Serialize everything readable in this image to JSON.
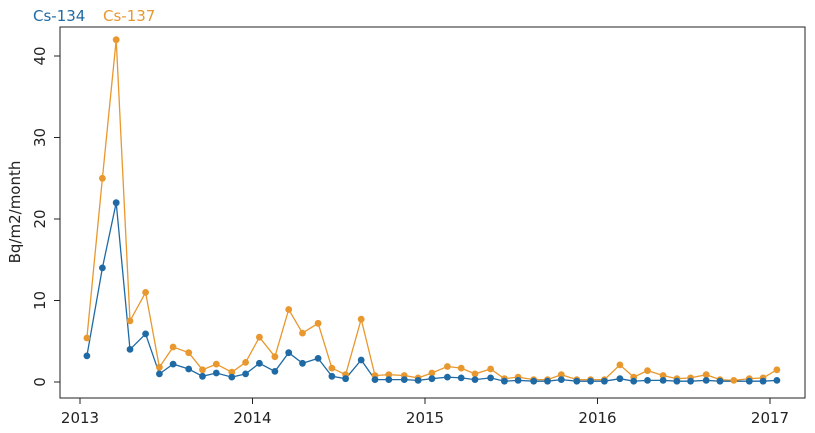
{
  "chart_data": {
    "type": "line",
    "title": "",
    "xlabel": "",
    "ylabel": "Bq/m2/month",
    "xlim": [
      2013,
      2017.05
    ],
    "ylim": [
      -1,
      43
    ],
    "x_ticks": [
      "2013",
      "2014",
      "2015",
      "2016",
      "2017"
    ],
    "y_ticks": [
      "0",
      "10",
      "20",
      "30",
      "40"
    ],
    "grid": false,
    "legend_position": "top-left",
    "series": [
      {
        "name": "Cs-134",
        "color": "#1f6aa5",
        "points": [
          [
            2013.04,
            3.2
          ],
          [
            2013.13,
            14.0
          ],
          [
            2013.21,
            22.0
          ],
          [
            2013.29,
            4.0
          ],
          [
            2013.38,
            5.9
          ],
          [
            2013.46,
            1.0
          ],
          [
            2013.54,
            2.2
          ],
          [
            2013.63,
            1.6
          ],
          [
            2013.71,
            0.7
          ],
          [
            2013.79,
            1.1
          ],
          [
            2013.88,
            0.6
          ],
          [
            2013.96,
            1.0
          ],
          [
            2014.04,
            2.3
          ],
          [
            2014.13,
            1.3
          ],
          [
            2014.21,
            3.6
          ],
          [
            2014.29,
            2.3
          ],
          [
            2014.38,
            2.9
          ],
          [
            2014.46,
            0.7
          ],
          [
            2014.54,
            0.4
          ],
          [
            2014.63,
            2.7
          ],
          [
            2014.71,
            0.3
          ],
          [
            2014.79,
            0.3
          ],
          [
            2014.88,
            0.3
          ],
          [
            2014.96,
            0.2
          ],
          [
            2015.04,
            0.4
          ],
          [
            2015.13,
            0.6
          ],
          [
            2015.21,
            0.5
          ],
          [
            2015.29,
            0.3
          ],
          [
            2015.38,
            0.5
          ],
          [
            2015.46,
            0.1
          ],
          [
            2015.54,
            0.2
          ],
          [
            2015.63,
            0.1
          ],
          [
            2015.71,
            0.1
          ],
          [
            2015.79,
            0.3
          ],
          [
            2015.88,
            0.1
          ],
          [
            2015.96,
            0.1
          ],
          [
            2016.04,
            0.1
          ],
          [
            2016.13,
            0.4
          ],
          [
            2016.21,
            0.1
          ],
          [
            2016.29,
            0.2
          ],
          [
            2016.38,
            0.2
          ],
          [
            2016.46,
            0.1
          ],
          [
            2016.54,
            0.1
          ],
          [
            2016.63,
            0.2
          ],
          [
            2016.71,
            0.1
          ],
          [
            2016.88,
            0.1
          ],
          [
            2016.96,
            0.1
          ],
          [
            2017.04,
            0.2
          ]
        ]
      },
      {
        "name": "Cs-137",
        "color": "#e8982e",
        "points": [
          [
            2013.04,
            5.4
          ],
          [
            2013.13,
            25.0
          ],
          [
            2013.21,
            42.0
          ],
          [
            2013.29,
            7.5
          ],
          [
            2013.38,
            11.0
          ],
          [
            2013.46,
            1.8
          ],
          [
            2013.54,
            4.3
          ],
          [
            2013.63,
            3.6
          ],
          [
            2013.71,
            1.5
          ],
          [
            2013.79,
            2.2
          ],
          [
            2013.88,
            1.2
          ],
          [
            2013.96,
            2.4
          ],
          [
            2014.04,
            5.5
          ],
          [
            2014.13,
            3.1
          ],
          [
            2014.21,
            8.9
          ],
          [
            2014.29,
            6.0
          ],
          [
            2014.38,
            7.2
          ],
          [
            2014.46,
            1.7
          ],
          [
            2014.54,
            0.9
          ],
          [
            2014.63,
            7.7
          ],
          [
            2014.71,
            0.8
          ],
          [
            2014.79,
            0.9
          ],
          [
            2014.88,
            0.8
          ],
          [
            2014.96,
            0.5
          ],
          [
            2015.04,
            1.1
          ],
          [
            2015.13,
            1.9
          ],
          [
            2015.21,
            1.7
          ],
          [
            2015.29,
            1.0
          ],
          [
            2015.38,
            1.6
          ],
          [
            2015.46,
            0.4
          ],
          [
            2015.54,
            0.6
          ],
          [
            2015.63,
            0.3
          ],
          [
            2015.71,
            0.3
          ],
          [
            2015.79,
            0.9
          ],
          [
            2015.88,
            0.3
          ],
          [
            2015.96,
            0.3
          ],
          [
            2016.04,
            0.3
          ],
          [
            2016.13,
            2.1
          ],
          [
            2016.21,
            0.6
          ],
          [
            2016.29,
            1.4
          ],
          [
            2016.38,
            0.8
          ],
          [
            2016.46,
            0.4
          ],
          [
            2016.54,
            0.5
          ],
          [
            2016.63,
            0.9
          ],
          [
            2016.71,
            0.3
          ],
          [
            2016.79,
            0.2
          ],
          [
            2016.88,
            0.4
          ],
          [
            2016.96,
            0.5
          ],
          [
            2017.04,
            1.5
          ]
        ]
      }
    ]
  }
}
